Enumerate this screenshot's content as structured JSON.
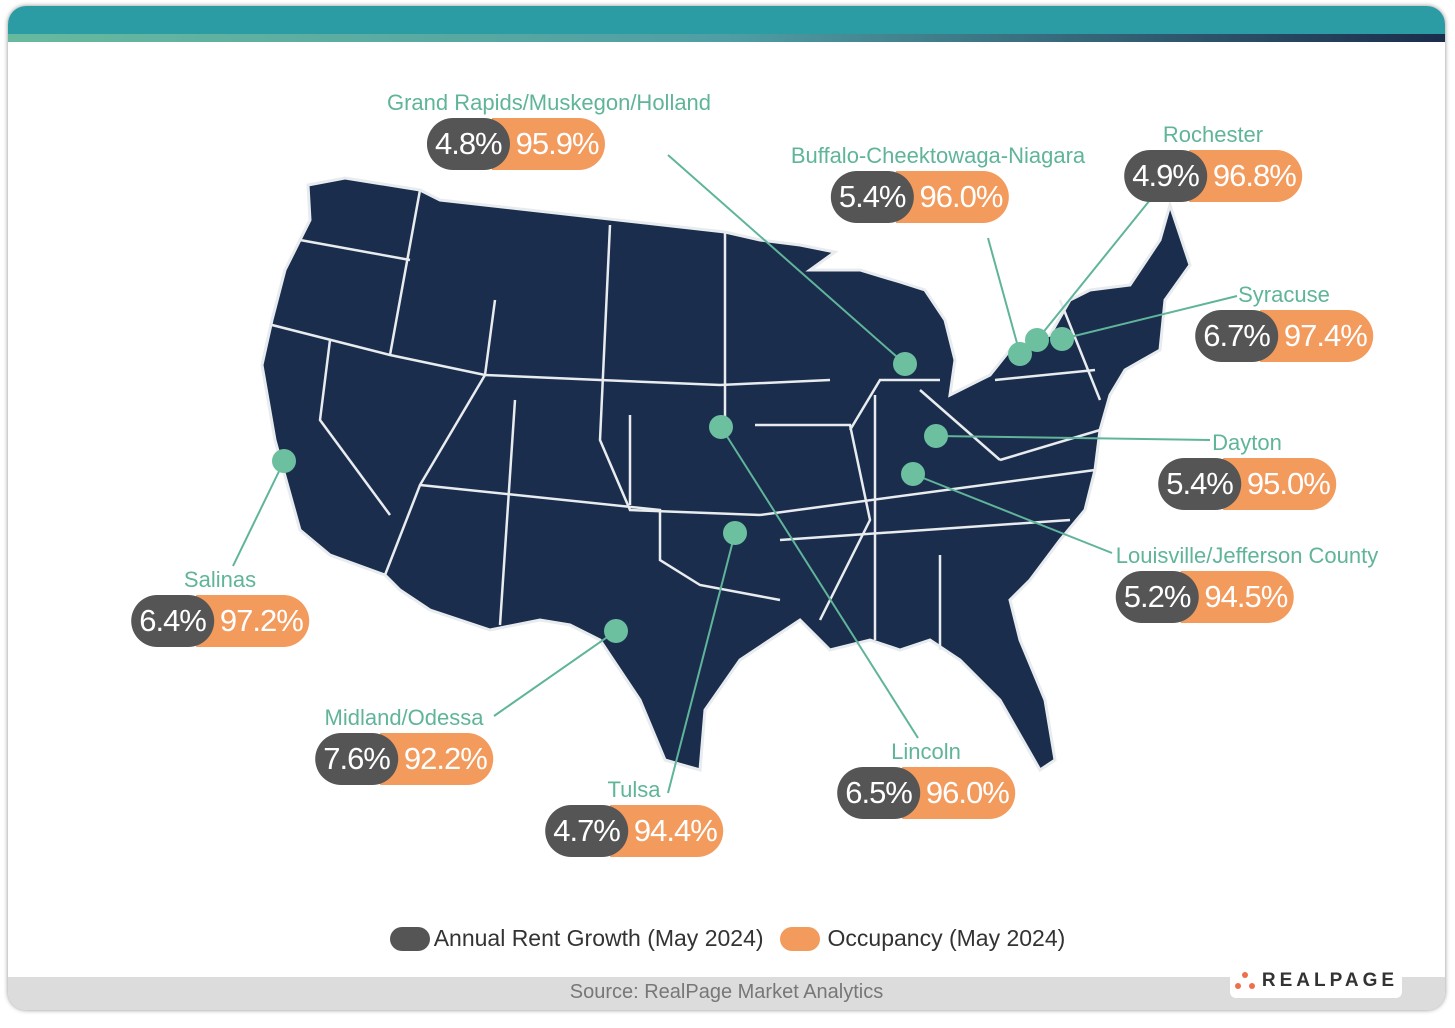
{
  "colors": {
    "header": "#2c9ca4",
    "map": "#1b2d4c",
    "growth": "#555555",
    "occupancy": "#f39a5d",
    "label": "#5fb49a"
  },
  "markets": [
    {
      "name": "Grand Rapids/Muskegon/Holland",
      "growth": "4.8%",
      "occupancy": "95.9%"
    },
    {
      "name": "Buffalo-Cheektowaga-Niagara",
      "growth": "5.4%",
      "occupancy": "96.0%"
    },
    {
      "name": "Rochester",
      "growth": "4.9%",
      "occupancy": "96.8%"
    },
    {
      "name": "Syracuse",
      "growth": "6.7%",
      "occupancy": "97.4%"
    },
    {
      "name": "Dayton",
      "growth": "5.4%",
      "occupancy": "95.0%"
    },
    {
      "name": "Louisville/Jefferson County",
      "growth": "5.2%",
      "occupancy": "94.5%"
    },
    {
      "name": "Lincoln",
      "growth": "6.5%",
      "occupancy": "96.0%"
    },
    {
      "name": "Tulsa",
      "growth": "4.7%",
      "occupancy": "94.4%"
    },
    {
      "name": "Midland/Odessa",
      "growth": "7.6%",
      "occupancy": "92.2%"
    },
    {
      "name": "Salinas",
      "growth": "6.4%",
      "occupancy": "97.2%"
    }
  ],
  "legend": {
    "growth": "Annual Rent Growth (May 2024)",
    "occupancy": "Occupancy (May 2024)"
  },
  "footer": {
    "source": "Source: RealPage Market Analytics",
    "logo": "REALPAGE"
  }
}
